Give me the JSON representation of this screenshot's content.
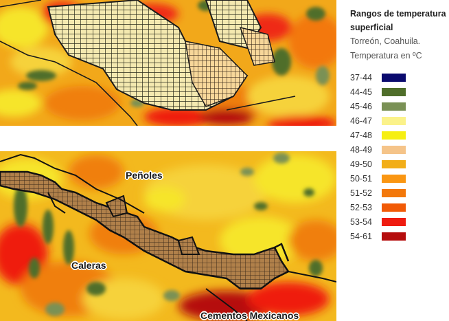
{
  "legend": {
    "title_line1": "Rangos de temperatura",
    "title_line2": "superficial",
    "subtitle_line1": "Torreón, Coahuila.",
    "subtitle_line2": "Temperatura en ºC",
    "items": [
      {
        "label": "37-44",
        "color": "#0a0a6e"
      },
      {
        "label": "44-45",
        "color": "#4f6e2a"
      },
      {
        "label": "45-46",
        "color": "#7a9155"
      },
      {
        "label": "46-47",
        "color": "#fbf28a"
      },
      {
        "label": "47-48",
        "color": "#f6ef12"
      },
      {
        "label": "48-49",
        "color": "#f5c489"
      },
      {
        "label": "49-50",
        "color": "#f2ae18"
      },
      {
        "label": "50-51",
        "color": "#fa9612"
      },
      {
        "label": "51-52",
        "color": "#f3780b"
      },
      {
        "label": "52-53",
        "color": "#f15a06"
      },
      {
        "label": "53-54",
        "color": "#ef1c10"
      },
      {
        "label": "54-61",
        "color": "#b50d0d"
      }
    ]
  },
  "maps": {
    "bottom_labels": {
      "penoles": "Peñoles",
      "caleras": "Caleras",
      "cementos": "Cementos Mexicanos"
    }
  }
}
